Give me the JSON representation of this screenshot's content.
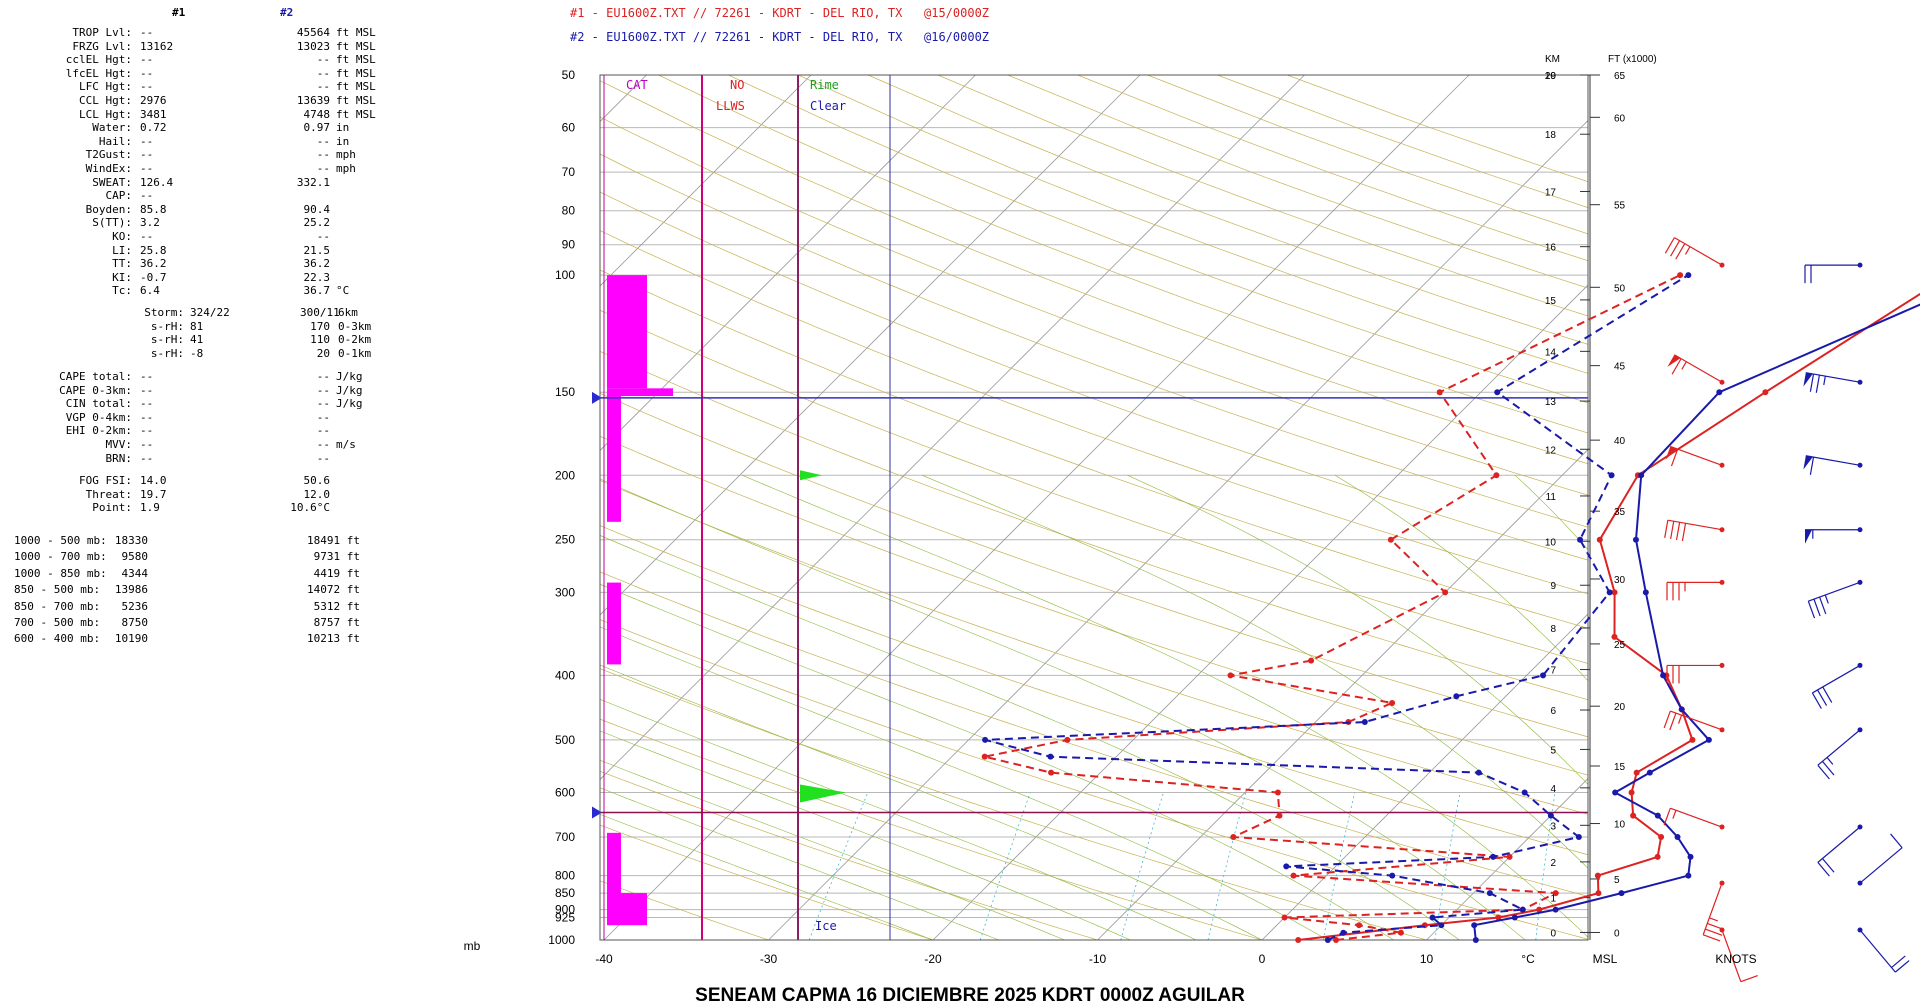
{
  "header": {
    "col1_label": "#1",
    "col2_label": "#2",
    "line1": "#1 - EU1600Z.TXT // 72261 - KDRT - DEL RIO, TX   @15/0000Z",
    "line2": "#2 - EU1600Z.TXT // 72261 - KDRT - DEL RIO, TX   @16/0000Z",
    "color1": "#dd2222",
    "color2": "#1a1aaa"
  },
  "indices": [
    {
      "label": "TROP Lvl:",
      "v1": "--",
      "v2": "45564",
      "unit": "ft MSL"
    },
    {
      "label": "FRZG Lvl:",
      "v1": "13162",
      "v2": "13023",
      "unit": "ft MSL"
    },
    {
      "label": "cclEL Hgt:",
      "v1": "--",
      "v2": "--",
      "unit": "ft MSL"
    },
    {
      "label": "lfcEL Hgt:",
      "v1": "--",
      "v2": "--",
      "unit": "ft MSL"
    },
    {
      "label": "LFC Hgt:",
      "v1": "--",
      "v2": "--",
      "unit": "ft MSL"
    },
    {
      "label": "CCL Hgt:",
      "v1": "2976",
      "v2": "13639",
      "unit": "ft MSL"
    },
    {
      "label": "LCL Hgt:",
      "v1": "3481",
      "v2": "4748",
      "unit": "ft MSL"
    },
    {
      "label": "Water:",
      "v1": "0.72",
      "v2": "0.97",
      "unit": "in"
    },
    {
      "label": "Hail:",
      "v1": "--",
      "v2": "--",
      "unit": "in"
    },
    {
      "label": "T2Gust:",
      "v1": "--",
      "v2": "--",
      "unit": "mph"
    },
    {
      "label": "WindEx:",
      "v1": "--",
      "v2": "--",
      "unit": "mph"
    },
    {
      "label": "SWEAT:",
      "v1": "126.4",
      "v2": "332.1",
      "unit": ""
    },
    {
      "label": "CAP:",
      "v1": "--",
      "v2": "",
      "unit": ""
    },
    {
      "label": "Boyden:",
      "v1": "85.8",
      "v2": "90.4",
      "unit": ""
    },
    {
      "label": "S(TT):",
      "v1": "3.2",
      "v2": "25.2",
      "unit": ""
    },
    {
      "label": "KO:",
      "v1": "--",
      "v2": "--",
      "unit": ""
    },
    {
      "label": "LI:",
      "v1": "25.8",
      "v2": "21.5",
      "unit": ""
    },
    {
      "label": "TT:",
      "v1": "36.2",
      "v2": "36.2",
      "unit": ""
    },
    {
      "label": "KI:",
      "v1": "-0.7",
      "v2": "22.3",
      "unit": ""
    },
    {
      "label": "Tc:",
      "v1": "6.4",
      "v2": "36.7",
      "unit": "°C"
    }
  ],
  "storm": [
    {
      "label": "Storm:",
      "v1": "324/22",
      "v2": "300/11",
      "unit": "6km"
    },
    {
      "label": "s-rH:",
      "v1": "81",
      "v2": "170",
      "unit": "0-3km"
    },
    {
      "label": "s-rH:",
      "v1": "41",
      "v2": "110",
      "unit": "0-2km"
    },
    {
      "label": "s-rH:",
      "v1": "-8",
      "v2": "20",
      "unit": "0-1km"
    }
  ],
  "cape": [
    {
      "label": "CAPE total:",
      "v1": "--",
      "v2": "--",
      "unit": "J/kg"
    },
    {
      "label": "CAPE 0-3km:",
      "v1": "--",
      "v2": "--",
      "unit": "J/kg"
    },
    {
      "label": "CIN total:",
      "v1": "--",
      "v2": "--",
      "unit": "J/kg"
    },
    {
      "label": "VGP 0-4km:",
      "v1": "--",
      "v2": "--",
      "unit": ""
    },
    {
      "label": "EHI 0-2km:",
      "v1": "--",
      "v2": "--",
      "unit": ""
    },
    {
      "label": "MVV:",
      "v1": "--",
      "v2": "--",
      "unit": "m/s"
    },
    {
      "label": "BRN:",
      "v1": "--",
      "v2": "--",
      "unit": ""
    }
  ],
  "fog": [
    {
      "label": "FOG FSI:",
      "v1": "14.0",
      "v2": "50.6",
      "unit": ""
    },
    {
      "label": "Threat:",
      "v1": "19.7",
      "v2": "12.0",
      "unit": ""
    },
    {
      "label": "Point:",
      "v1": "1.9",
      "v2": "10.6°C",
      "unit": ""
    }
  ],
  "thickness": [
    {
      "label": "1000 - 500 mb:",
      "v1": "18330",
      "v2": "18491 ft"
    },
    {
      "label": "1000 - 700 mb:",
      "v1": "9580",
      "v2": "9731 ft"
    },
    {
      "label": "1000 - 850 mb:",
      "v1": "4344",
      "v2": "4419 ft"
    },
    {
      "label": "850 - 500 mb:",
      "v1": "13986",
      "v2": "14072 ft"
    },
    {
      "label": "850 - 700 mb:",
      "v1": "5236",
      "v2": "5312 ft"
    },
    {
      "label": "700 - 500 mb:",
      "v1": "8750",
      "v2": "8757 ft"
    },
    {
      "label": "600 - 400 mb:",
      "v1": "10190",
      "v2": "10213 ft"
    }
  ],
  "panel_labels": {
    "cat": "CAT",
    "no": "NO",
    "llws": "LLWS",
    "rime": "Rime",
    "clear": "Clear",
    "ice": "Ice",
    "km": "KM",
    "ft": "FT (x1000)",
    "msl": "MSL",
    "degc": "°C",
    "knots": "KNOTS",
    "mb": "mb"
  },
  "footer": {
    "title": "SENEAM CAPMA  16 DICIEMBRE 2025  KDRT  0000Z  AGUILAR"
  },
  "chart_data": {
    "type": "line",
    "title": "SENEAM CAPMA  16 DICIEMBRE 2025  KDRT  0000Z  AGUILAR",
    "xlabel": "°C",
    "ylabel": "mb",
    "x_ticks": [
      -40,
      -30,
      -20,
      -10,
      0,
      10
    ],
    "p_ticks": [
      1000,
      925,
      900,
      850,
      800,
      700,
      600,
      500,
      400,
      300,
      250,
      200,
      150,
      100,
      90,
      80,
      70,
      60,
      50
    ],
    "km_ticks": [
      0,
      1,
      2,
      3,
      4,
      5,
      6,
      7,
      8,
      9,
      10,
      11,
      12,
      13,
      14,
      15,
      16,
      17,
      18,
      19,
      20
    ],
    "ft_ticks": [
      0,
      5,
      10,
      15,
      20,
      25,
      30,
      35,
      40,
      45,
      50,
      55,
      60,
      65
    ],
    "series": [
      {
        "name": "#1",
        "role": "temperature",
        "color": "#dd2222",
        "points": [
          [
            1000,
            2.2
          ],
          [
            950,
            9
          ],
          [
            925,
            13
          ],
          [
            900,
            15
          ],
          [
            850,
            17.6
          ],
          [
            800,
            16.5
          ],
          [
            750,
            19
          ],
          [
            700,
            18
          ],
          [
            650,
            15
          ],
          [
            600,
            13.5
          ],
          [
            560,
            12.6
          ],
          [
            500,
            14
          ],
          [
            450,
            11.5
          ],
          [
            400,
            8.5
          ],
          [
            350,
            3
          ],
          [
            300,
            0.3
          ],
          [
            250,
            -3.8
          ],
          [
            200,
            -5.4
          ],
          [
            150,
            -2.7
          ],
          [
            100,
            1.4
          ]
        ]
      },
      {
        "name": "#1",
        "role": "dewpoint",
        "color": "#dd2222",
        "points": [
          [
            1000,
            4.5
          ],
          [
            975,
            8
          ],
          [
            950,
            5
          ],
          [
            925,
            0
          ],
          [
            900,
            14
          ],
          [
            850,
            15
          ],
          [
            800,
            -2
          ],
          [
            750,
            10
          ],
          [
            700,
            -8
          ],
          [
            650,
            -6.5
          ],
          [
            600,
            -8
          ],
          [
            560,
            -23
          ],
          [
            530,
            -28
          ],
          [
            500,
            -24
          ],
          [
            470,
            -8
          ],
          [
            440,
            -6.5
          ],
          [
            400,
            -18
          ],
          [
            380,
            -14
          ],
          [
            300,
            -10
          ],
          [
            250,
            -16.5
          ],
          [
            200,
            -14
          ],
          [
            150,
            -22.5
          ],
          [
            100,
            -15
          ]
        ]
      },
      {
        "name": "#2",
        "role": "temperature",
        "color": "#1a1aaa",
        "points": [
          [
            1000,
            13
          ],
          [
            950,
            12
          ],
          [
            925,
            14
          ],
          [
            900,
            16
          ],
          [
            850,
            19
          ],
          [
            800,
            22
          ],
          [
            750,
            21
          ],
          [
            700,
            19
          ],
          [
            650,
            16.5
          ],
          [
            600,
            12.5
          ],
          [
            560,
            13.4
          ],
          [
            500,
            15
          ],
          [
            450,
            11.5
          ],
          [
            400,
            8.3
          ],
          [
            300,
            2.2
          ],
          [
            250,
            -1.6
          ],
          [
            200,
            -5.2
          ],
          [
            150,
            -5.5
          ],
          [
            100,
            3.7
          ]
        ]
      },
      {
        "name": "#2",
        "role": "dewpoint",
        "color": "#1a1aaa",
        "points": [
          [
            1000,
            4
          ],
          [
            975,
            4.5
          ],
          [
            950,
            10
          ],
          [
            925,
            9
          ],
          [
            900,
            14
          ],
          [
            850,
            11
          ],
          [
            800,
            4
          ],
          [
            775,
            -3
          ],
          [
            750,
            9
          ],
          [
            700,
            13
          ],
          [
            650,
            10
          ],
          [
            600,
            7
          ],
          [
            560,
            3
          ],
          [
            530,
            -24
          ],
          [
            500,
            -29
          ],
          [
            470,
            -7
          ],
          [
            430,
            -3
          ],
          [
            400,
            1
          ],
          [
            300,
            0
          ],
          [
            250,
            -5
          ],
          [
            200,
            -7
          ],
          [
            150,
            -19
          ],
          [
            100,
            -14.5
          ]
        ]
      }
    ],
    "wind_barbs": [
      {
        "name": "#1",
        "points": [
          [
            1000,
            160,
            10
          ],
          [
            850,
            200,
            35
          ],
          [
            700,
            290,
            15
          ],
          [
            500,
            290,
            25
          ],
          [
            400,
            270,
            30
          ],
          [
            300,
            270,
            35
          ],
          [
            250,
            280,
            40
          ],
          [
            200,
            290,
            60
          ],
          [
            150,
            300,
            65
          ],
          [
            100,
            300,
            35
          ]
        ]
      },
      {
        "name": "#2",
        "points": [
          [
            1000,
            140,
            20
          ],
          [
            850,
            50,
            10
          ],
          [
            700,
            230,
            20
          ],
          [
            500,
            230,
            25
          ],
          [
            400,
            240,
            30
          ],
          [
            300,
            250,
            35
          ],
          [
            250,
            270,
            55
          ],
          [
            200,
            280,
            60
          ],
          [
            150,
            280,
            75
          ],
          [
            100,
            270,
            20
          ]
        ]
      }
    ],
    "legend": "top",
    "grid": true
  }
}
